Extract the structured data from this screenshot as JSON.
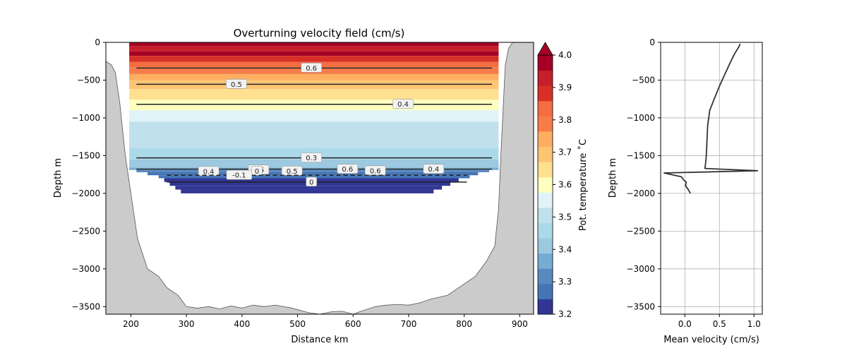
{
  "chart_data": [
    {
      "type": "contour",
      "title": "Overturning velocity field (cm/s)",
      "xlabel": "Distance km",
      "ylabel": "Depth m",
      "xlim": [
        155,
        925
      ],
      "ylim": [
        -3600,
        0
      ],
      "xticks": [
        200,
        300,
        400,
        500,
        600,
        700,
        800,
        900
      ],
      "yticks": [
        0,
        -500,
        -1000,
        -1500,
        -2000,
        -2500,
        -3000,
        -3500
      ],
      "xtick_labels": [
        "200",
        "300",
        "400",
        "500",
        "600",
        "700",
        "800",
        "900"
      ],
      "ytick_labels": [
        "0",
        "−500",
        "−1000",
        "−1500",
        "−2000",
        "−2500",
        "−3000",
        "−3500"
      ],
      "temperature_bands": [
        {
          "top": 0,
          "bottom": -50,
          "value": 4.0
        },
        {
          "top": -50,
          "bottom": -120,
          "value": 3.95
        },
        {
          "top": -120,
          "bottom": -180,
          "value": 4.0
        },
        {
          "top": -180,
          "bottom": -260,
          "value": 3.9
        },
        {
          "top": -260,
          "bottom": -330,
          "value": 3.85
        },
        {
          "top": -330,
          "bottom": -420,
          "value": 3.8
        },
        {
          "top": -420,
          "bottom": -500,
          "value": 3.75
        },
        {
          "top": -500,
          "bottom": -620,
          "value": 3.7
        },
        {
          "top": -620,
          "bottom": -760,
          "value": 3.65
        },
        {
          "top": -760,
          "bottom": -900,
          "value": 3.6
        },
        {
          "top": -900,
          "bottom": -1050,
          "value": 3.55
        },
        {
          "top": -1050,
          "bottom": -1400,
          "value": 3.5
        },
        {
          "top": -1400,
          "bottom": -1550,
          "value": 3.45
        },
        {
          "top": -1550,
          "bottom": -1660,
          "value": 3.4
        },
        {
          "top": -1660,
          "bottom": -1690,
          "value": 3.35
        }
      ],
      "deep_steps": [
        {
          "top": -1690,
          "bottom": -1720,
          "x0": 210,
          "x1": 845,
          "value": 3.3
        },
        {
          "top": -1720,
          "bottom": -1760,
          "x0": 230,
          "x1": 825,
          "value": 3.25
        },
        {
          "top": -1760,
          "bottom": -1800,
          "x0": 250,
          "x1": 810,
          "value": 3.25
        },
        {
          "top": -1800,
          "bottom": -1850,
          "x0": 260,
          "x1": 790,
          "value": 3.2
        },
        {
          "top": -1850,
          "bottom": -1900,
          "x0": 270,
          "x1": 775,
          "value": 3.2
        },
        {
          "top": -1900,
          "bottom": -1950,
          "x0": 280,
          "x1": 760,
          "value": 3.2
        },
        {
          "top": -1950,
          "bottom": -2000,
          "x0": 290,
          "x1": 745,
          "value": 3.2
        }
      ],
      "field_extent": {
        "x0": 197,
        "x1": 862
      },
      "contours": [
        {
          "level": "0.6",
          "depth": -340,
          "x0": 210,
          "x1": 850,
          "label_x": 525,
          "style": "solid"
        },
        {
          "level": "0.5",
          "depth": -555,
          "x0": 210,
          "x1": 850,
          "label_x": 390,
          "style": "solid"
        },
        {
          "level": "0.4",
          "depth": -820,
          "x0": 210,
          "x1": 850,
          "label_x": 690,
          "style": "solid"
        },
        {
          "level": "0.3",
          "depth": -1530,
          "x0": 210,
          "x1": 850,
          "label_x": 525,
          "style": "solid"
        },
        {
          "level": "0.4",
          "depth": -1680,
          "x0": 210,
          "x1": 850,
          "label_x": 745,
          "style": "solid"
        },
        {
          "level": "0.6",
          "depth": -1680,
          "x0": 210,
          "x1": 850,
          "label_x": 590,
          "style": "none"
        },
        {
          "level": "0.6",
          "depth": -1700,
          "x0": 210,
          "x1": 850,
          "label_x": 640,
          "style": "none"
        },
        {
          "level": "0.5",
          "depth": -1690,
          "x0": 210,
          "x1": 850,
          "label_x": 430,
          "style": "none"
        },
        {
          "level": "0.5",
          "depth": -1705,
          "x0": 210,
          "x1": 850,
          "label_x": 490,
          "style": "none"
        },
        {
          "level": "0.4",
          "depth": -1710,
          "x0": 210,
          "x1": 850,
          "label_x": 340,
          "style": "none"
        },
        {
          "level": "0",
          "depth": -1705,
          "x0": 210,
          "x1": 850,
          "label_x": 427,
          "style": "none"
        },
        {
          "level": "-0.1",
          "depth": -1760,
          "x0": 265,
          "x1": 805,
          "label_x": 395,
          "style": "dashed"
        },
        {
          "level": "0",
          "depth": -1850,
          "x0": 265,
          "x1": 805,
          "label_x": 525,
          "style": "solid"
        }
      ],
      "bathymetry": [
        [
          155,
          -250
        ],
        [
          165,
          -300
        ],
        [
          172,
          -400
        ],
        [
          180,
          -800
        ],
        [
          190,
          -1500
        ],
        [
          200,
          -2000
        ],
        [
          212,
          -2600
        ],
        [
          230,
          -3000
        ],
        [
          250,
          -3100
        ],
        [
          265,
          -3250
        ],
        [
          285,
          -3350
        ],
        [
          300,
          -3500
        ],
        [
          320,
          -3520
        ],
        [
          340,
          -3500
        ],
        [
          360,
          -3530
        ],
        [
          380,
          -3490
        ],
        [
          400,
          -3520
        ],
        [
          420,
          -3480
        ],
        [
          440,
          -3500
        ],
        [
          460,
          -3480
        ],
        [
          490,
          -3520
        ],
        [
          520,
          -3580
        ],
        [
          540,
          -3600
        ],
        [
          560,
          -3570
        ],
        [
          580,
          -3560
        ],
        [
          600,
          -3600
        ],
        [
          615,
          -3560
        ],
        [
          640,
          -3500
        ],
        [
          660,
          -3480
        ],
        [
          680,
          -3470
        ],
        [
          700,
          -3480
        ],
        [
          720,
          -3450
        ],
        [
          740,
          -3400
        ],
        [
          770,
          -3350
        ],
        [
          800,
          -3200
        ],
        [
          820,
          -3100
        ],
        [
          840,
          -2900
        ],
        [
          855,
          -2700
        ],
        [
          862,
          -2200
        ],
        [
          866,
          -1500
        ],
        [
          870,
          -900
        ],
        [
          874,
          -300
        ],
        [
          880,
          -80
        ],
        [
          887,
          0
        ],
        [
          900,
          0
        ],
        [
          925,
          0
        ]
      ]
    },
    {
      "type": "colorbar",
      "label": "Pot. temperature ˚C",
      "min": 3.2,
      "max": 4.0,
      "ticks": [
        "3.2",
        "3.3",
        "3.4",
        "3.5",
        "3.6",
        "3.7",
        "3.8",
        "3.9",
        "4.0"
      ],
      "colors": [
        "#313695",
        "#4575b4",
        "#5a89c0",
        "#74add1",
        "#9dc9e0",
        "#abd9e9",
        "#c0e1ec",
        "#e0f3f8",
        "#ffffbf",
        "#fee090",
        "#fdc474",
        "#fdae61",
        "#f67d4a",
        "#f46d43",
        "#d73027",
        "#c51f2b",
        "#a50026"
      ]
    },
    {
      "type": "line",
      "xlabel": "Mean velocity (cm/s)",
      "ylabel": "Depth m",
      "xlim": [
        -0.35,
        1.12
      ],
      "ylim": [
        -3600,
        0
      ],
      "xticks": [
        0.0,
        0.5,
        1.0
      ],
      "xtick_labels": [
        "0.0",
        "0.5",
        "1.0"
      ],
      "yticks": [
        0,
        -500,
        -1000,
        -1500,
        -2000,
        -2500,
        -3000,
        -3500
      ],
      "ytick_labels": [
        "0",
        "−500",
        "−1000",
        "−1500",
        "−2000",
        "−2500",
        "−3000",
        "−3500"
      ],
      "grid": true,
      "x": [
        0.8,
        0.78,
        0.72,
        0.65,
        0.58,
        0.5,
        0.42,
        0.36,
        0.33,
        0.32,
        0.31,
        0.3,
        0.29,
        1.05,
        -0.3,
        -0.15,
        -0.05,
        -0.02,
        0.02,
        0.01,
        0.05,
        0.08
      ],
      "y": [
        -20,
        -60,
        -150,
        -280,
        -420,
        -580,
        -760,
        -900,
        -1100,
        -1300,
        -1500,
        -1600,
        -1670,
        -1700,
        -1730,
        -1760,
        -1780,
        -1820,
        -1850,
        -1900,
        -1950,
        -2000
      ]
    }
  ]
}
